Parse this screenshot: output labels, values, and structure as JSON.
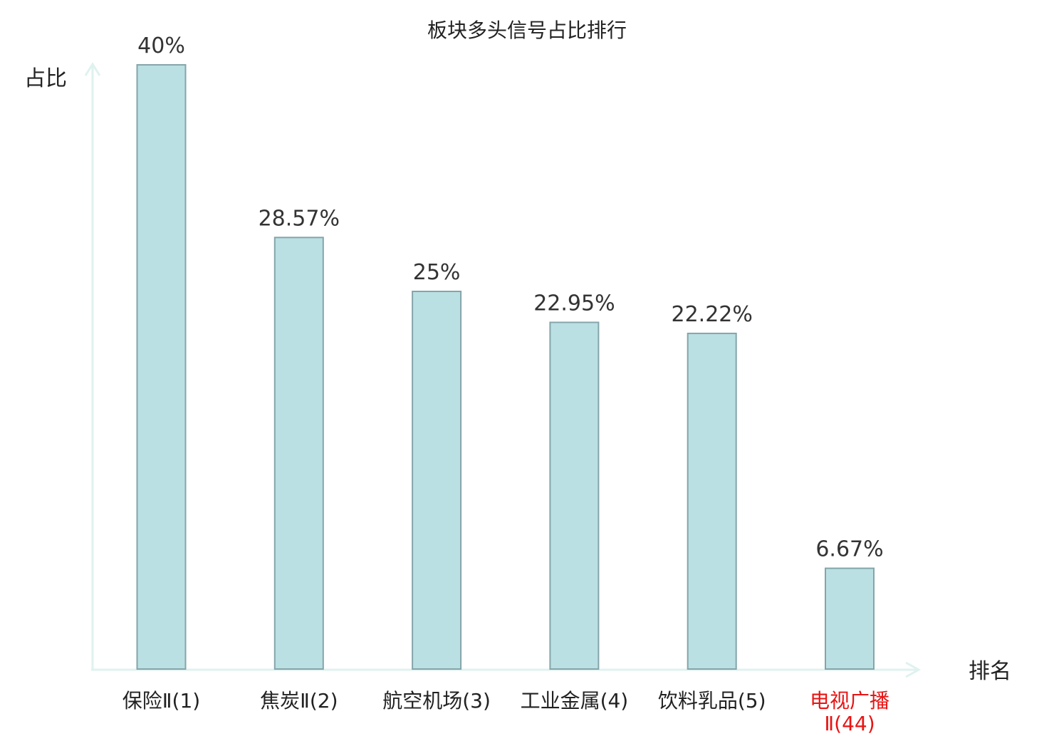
{
  "chart_data": {
    "type": "bar",
    "title": "板块多头信号占比排行",
    "ylabel": "占比",
    "xlabel": "排名",
    "ylim": [
      0,
      40
    ],
    "grid": false,
    "categories": [
      "保险Ⅱ(1)",
      "焦炭Ⅱ(2)",
      "航空机场(3)",
      "工业金属(4)",
      "饮料乳品(5)",
      "电视广播Ⅱ(44)"
    ],
    "values": [
      40,
      28.57,
      25,
      22.95,
      22.22,
      6.67
    ],
    "value_labels": [
      "40%",
      "28.57%",
      "25%",
      "22.95%",
      "22.22%",
      "6.67%"
    ],
    "highlight_index": 5
  },
  "colors": {
    "bar_fill": "#bbe0e3",
    "bar_stroke": "#84a5aa",
    "axis": "#dff2ef",
    "highlight_text": "#e81414",
    "text": "#222222"
  }
}
